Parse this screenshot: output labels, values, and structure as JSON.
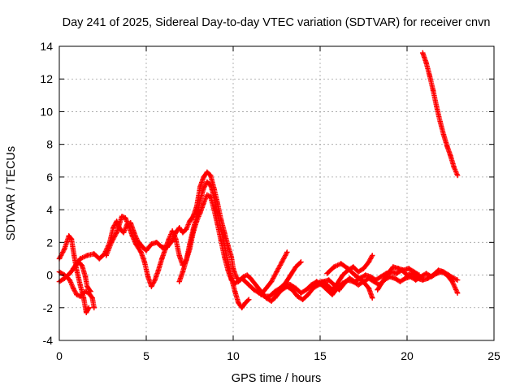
{
  "chart_data": {
    "type": "scatter",
    "title": "Day 241 of 2025, Sidereal Day-to-day VTEC variation (SDTVAR) for receiver cnvn",
    "xlabel": "GPS time / hours",
    "ylabel": "SDTVAR / TECUs",
    "xlim": [
      0,
      25
    ],
    "ylim": [
      -4,
      14
    ],
    "xticks": [
      0,
      5,
      10,
      15,
      20,
      25
    ],
    "yticks": [
      -4,
      -2,
      0,
      2,
      4,
      6,
      8,
      10,
      12,
      14
    ],
    "grid": true,
    "marker": "plus",
    "color": "#ff0000",
    "series": [
      {
        "name": "s1",
        "points": [
          [
            0,
            1.0
          ],
          [
            0.3,
            1.6
          ],
          [
            0.55,
            2.4
          ],
          [
            0.7,
            2.2
          ],
          [
            0.85,
            1.2
          ],
          [
            1.0,
            0.3
          ],
          [
            1.2,
            -0.6
          ],
          [
            1.4,
            -1.4
          ],
          [
            1.55,
            -2.3
          ],
          [
            1.7,
            -2.0
          ]
        ]
      },
      {
        "name": "s2",
        "points": [
          [
            0,
            0.2
          ],
          [
            0.3,
            0.0
          ],
          [
            0.6,
            -0.3
          ],
          [
            0.8,
            -0.8
          ],
          [
            1.0,
            -1.2
          ],
          [
            1.2,
            -1.3
          ],
          [
            1.5,
            -1.0
          ],
          [
            1.7,
            -1.1
          ],
          [
            1.9,
            -1.4
          ],
          [
            2.0,
            -2.0
          ]
        ]
      },
      {
        "name": "s3",
        "points": [
          [
            0,
            -0.4
          ],
          [
            0.3,
            -0.2
          ],
          [
            0.6,
            0.1
          ],
          [
            0.9,
            0.5
          ],
          [
            1.1,
            0.8
          ],
          [
            1.3,
            0.6
          ],
          [
            1.5,
            -0.1
          ],
          [
            1.6,
            -0.7
          ],
          [
            1.8,
            -1.0
          ]
        ]
      },
      {
        "name": "s4",
        "points": [
          [
            0.8,
            0.4
          ],
          [
            1.2,
            1.0
          ],
          [
            1.6,
            1.2
          ],
          [
            2.0,
            1.3
          ],
          [
            2.3,
            1.0
          ],
          [
            2.6,
            1.3
          ],
          [
            2.9,
            2.0
          ],
          [
            3.1,
            2.9
          ],
          [
            3.3,
            3.3
          ],
          [
            3.5,
            2.8
          ],
          [
            3.7,
            2.6
          ],
          [
            3.9,
            3.1
          ],
          [
            4.1,
            3.2
          ],
          [
            4.3,
            2.6
          ],
          [
            4.5,
            2.1
          ],
          [
            4.8,
            1.7
          ],
          [
            5.0,
            1.5
          ],
          [
            5.3,
            1.9
          ],
          [
            5.6,
            2.0
          ],
          [
            5.9,
            1.7
          ],
          [
            6.2,
            1.7
          ],
          [
            6.5,
            2.1
          ],
          [
            6.7,
            2.6
          ],
          [
            6.9,
            2.9
          ],
          [
            7.1,
            2.6
          ],
          [
            7.3,
            2.8
          ],
          [
            7.5,
            3.3
          ],
          [
            7.7,
            3.6
          ],
          [
            7.9,
            4.2
          ],
          [
            8.1,
            5.4
          ],
          [
            8.3,
            6.0
          ],
          [
            8.5,
            6.3
          ],
          [
            8.7,
            6.1
          ],
          [
            8.9,
            5.3
          ],
          [
            9.1,
            4.4
          ],
          [
            9.3,
            3.4
          ],
          [
            9.5,
            2.6
          ],
          [
            9.7,
            1.8
          ],
          [
            9.9,
            1.1
          ],
          [
            10.0,
            0.4
          ],
          [
            10.2,
            -0.2
          ],
          [
            10.4,
            -0.3
          ],
          [
            10.6,
            -0.1
          ],
          [
            10.8,
            0.0
          ],
          [
            11.0,
            -0.2
          ],
          [
            11.3,
            -0.6
          ],
          [
            11.6,
            -1.0
          ],
          [
            11.9,
            -1.4
          ],
          [
            12.2,
            -1.6
          ],
          [
            12.5,
            -1.2
          ],
          [
            12.8,
            -0.9
          ],
          [
            13.1,
            -0.7
          ],
          [
            13.4,
            -0.9
          ],
          [
            13.7,
            -1.3
          ],
          [
            14.0,
            -1.5
          ],
          [
            14.3,
            -1.2
          ],
          [
            14.6,
            -0.8
          ],
          [
            14.9,
            -0.6
          ],
          [
            15.2,
            -0.4
          ],
          [
            15.5,
            -0.3
          ],
          [
            15.8,
            -0.6
          ],
          [
            16.1,
            -0.9
          ],
          [
            16.4,
            -0.5
          ],
          [
            16.7,
            -0.2
          ],
          [
            17.0,
            -0.4
          ],
          [
            17.3,
            -0.2
          ],
          [
            17.6,
            0.0
          ],
          [
            17.9,
            -0.1
          ],
          [
            18.2,
            -0.3
          ],
          [
            18.5,
            -0.1
          ],
          [
            18.8,
            0.1
          ],
          [
            19.1,
            0.2
          ],
          [
            19.4,
            0.1
          ],
          [
            19.7,
            0.3
          ],
          [
            20.0,
            0.0
          ],
          [
            20.3,
            0.1
          ],
          [
            20.6,
            -0.2
          ],
          [
            20.9,
            -0.3
          ],
          [
            21.2,
            -0.2
          ],
          [
            21.5,
            0.0
          ],
          [
            21.8,
            0.3
          ],
          [
            22.1,
            0.2
          ],
          [
            22.4,
            0.0
          ],
          [
            22.7,
            -0.2
          ],
          [
            22.9,
            -0.3
          ]
        ]
      },
      {
        "name": "s5",
        "points": [
          [
            2.7,
            1.2
          ],
          [
            3.0,
            2.0
          ],
          [
            3.3,
            2.6
          ],
          [
            3.6,
            3.6
          ],
          [
            3.8,
            3.5
          ],
          [
            4.0,
            3.0
          ],
          [
            4.2,
            2.4
          ],
          [
            4.4,
            1.9
          ],
          [
            4.7,
            1.4
          ],
          [
            4.9,
            0.8
          ],
          [
            5.1,
            -0.1
          ],
          [
            5.3,
            -0.7
          ],
          [
            5.5,
            -0.3
          ],
          [
            5.7,
            0.3
          ],
          [
            5.9,
            1.0
          ],
          [
            6.1,
            1.6
          ],
          [
            6.3,
            2.2
          ],
          [
            6.5,
            2.7
          ],
          [
            6.7,
            2.2
          ],
          [
            6.9,
            1.2
          ],
          [
            7.1,
            0.6
          ],
          [
            7.3,
            0.9
          ],
          [
            7.5,
            1.9
          ],
          [
            7.7,
            2.8
          ],
          [
            7.9,
            3.6
          ],
          [
            8.1,
            4.6
          ],
          [
            8.3,
            5.3
          ],
          [
            8.5,
            5.7
          ],
          [
            8.7,
            5.5
          ],
          [
            8.9,
            4.8
          ],
          [
            9.1,
            3.8
          ],
          [
            9.3,
            2.8
          ],
          [
            9.5,
            1.8
          ],
          [
            9.7,
            0.8
          ],
          [
            9.9,
            -0.2
          ],
          [
            10.1,
            -1.0
          ],
          [
            10.3,
            -1.7
          ],
          [
            10.5,
            -2.0
          ],
          [
            10.7,
            -1.7
          ],
          [
            10.9,
            -1.5
          ]
        ]
      },
      {
        "name": "s6",
        "points": [
          [
            6.9,
            -0.4
          ],
          [
            7.1,
            0.2
          ],
          [
            7.3,
            0.9
          ],
          [
            7.5,
            1.6
          ],
          [
            7.7,
            2.6
          ],
          [
            7.9,
            3.3
          ],
          [
            8.1,
            3.8
          ],
          [
            8.3,
            4.4
          ],
          [
            8.5,
            4.9
          ],
          [
            8.7,
            4.8
          ],
          [
            8.9,
            4.0
          ],
          [
            9.1,
            3.1
          ],
          [
            9.3,
            2.1
          ],
          [
            9.5,
            1.1
          ],
          [
            9.7,
            0.3
          ],
          [
            9.9,
            -0.3
          ],
          [
            10.1,
            -0.5
          ],
          [
            10.3,
            -0.4
          ],
          [
            10.5,
            -0.2
          ],
          [
            10.7,
            -0.4
          ],
          [
            10.9,
            -0.6
          ],
          [
            11.2,
            -0.9
          ],
          [
            11.5,
            -1.1
          ],
          [
            11.8,
            -1.3
          ],
          [
            12.1,
            -1.3
          ],
          [
            12.4,
            -1.0
          ],
          [
            12.7,
            -0.8
          ],
          [
            13.0,
            -0.5
          ],
          [
            13.3,
            -0.6
          ],
          [
            13.6,
            -0.8
          ],
          [
            13.9,
            -1.1
          ],
          [
            14.2,
            -0.9
          ],
          [
            14.5,
            -0.6
          ],
          [
            14.8,
            -0.4
          ],
          [
            15.1,
            -0.6
          ],
          [
            15.4,
            -0.9
          ],
          [
            15.7,
            -1.2
          ],
          [
            16.0,
            -0.8
          ],
          [
            16.3,
            -0.5
          ],
          [
            16.6,
            -0.3
          ],
          [
            16.9,
            -0.4
          ],
          [
            17.2,
            -0.6
          ],
          [
            17.5,
            -0.4
          ],
          [
            17.8,
            -0.2
          ],
          [
            18.1,
            -0.4
          ],
          [
            18.4,
            -0.6
          ],
          [
            18.7,
            -0.3
          ],
          [
            19.0,
            -0.1
          ],
          [
            19.3,
            -0.2
          ],
          [
            19.6,
            -0.4
          ],
          [
            19.9,
            -0.2
          ],
          [
            20.2,
            -0.1
          ],
          [
            20.5,
            -0.3
          ],
          [
            20.8,
            -0.1
          ],
          [
            21.1,
            0.1
          ],
          [
            21.4,
            -0.1
          ],
          [
            21.7,
            0.1
          ],
          [
            22.0,
            0.2
          ],
          [
            22.3,
            0.0
          ],
          [
            22.6,
            -0.4
          ],
          [
            22.9,
            -1.1
          ]
        ]
      },
      {
        "name": "s7",
        "points": [
          [
            11.6,
            -1.2
          ],
          [
            11.9,
            -0.8
          ],
          [
            12.2,
            -0.4
          ],
          [
            12.5,
            0.2
          ],
          [
            12.8,
            0.8
          ],
          [
            13.1,
            1.4
          ]
        ]
      },
      {
        "name": "s8",
        "points": [
          [
            12.4,
            -1.4
          ],
          [
            12.7,
            -1.0
          ],
          [
            13.0,
            -0.5
          ],
          [
            13.3,
            0.0
          ],
          [
            13.6,
            0.5
          ],
          [
            13.9,
            0.8
          ]
        ]
      },
      {
        "name": "s9",
        "points": [
          [
            14.5,
            -0.8
          ],
          [
            14.8,
            -0.5
          ],
          [
            15.1,
            -0.4
          ],
          [
            15.4,
            -0.6
          ],
          [
            15.7,
            -0.9
          ],
          [
            16.0,
            -0.5
          ],
          [
            16.3,
            0.0
          ],
          [
            16.6,
            0.3
          ],
          [
            16.9,
            0.5
          ],
          [
            17.2,
            0.2
          ],
          [
            17.5,
            0.4
          ],
          [
            17.8,
            0.8
          ],
          [
            18.0,
            1.2
          ]
        ]
      },
      {
        "name": "s10",
        "points": [
          [
            15.4,
            0.1
          ],
          [
            15.8,
            0.5
          ],
          [
            16.2,
            0.7
          ],
          [
            16.6,
            0.4
          ],
          [
            17.0,
            0.0
          ],
          [
            17.4,
            -0.3
          ],
          [
            17.8,
            -0.8
          ],
          [
            18.0,
            -1.4
          ]
        ]
      },
      {
        "name": "s11",
        "points": [
          [
            18.3,
            -0.9
          ],
          [
            18.6,
            -0.4
          ],
          [
            18.9,
            0.1
          ],
          [
            19.2,
            0.5
          ],
          [
            19.5,
            0.4
          ],
          [
            19.8,
            0.3
          ],
          [
            20.1,
            0.4
          ],
          [
            20.4,
            0.2
          ],
          [
            20.7,
            0.0
          ]
        ]
      },
      {
        "name": "s12",
        "points": [
          [
            20.9,
            13.6
          ],
          [
            21.1,
            13.0
          ],
          [
            21.3,
            12.2
          ],
          [
            21.5,
            11.3
          ],
          [
            21.7,
            10.3
          ],
          [
            21.9,
            9.4
          ],
          [
            22.1,
            8.6
          ],
          [
            22.3,
            7.9
          ],
          [
            22.5,
            7.3
          ],
          [
            22.7,
            6.6
          ],
          [
            22.9,
            6.1
          ]
        ]
      }
    ]
  }
}
